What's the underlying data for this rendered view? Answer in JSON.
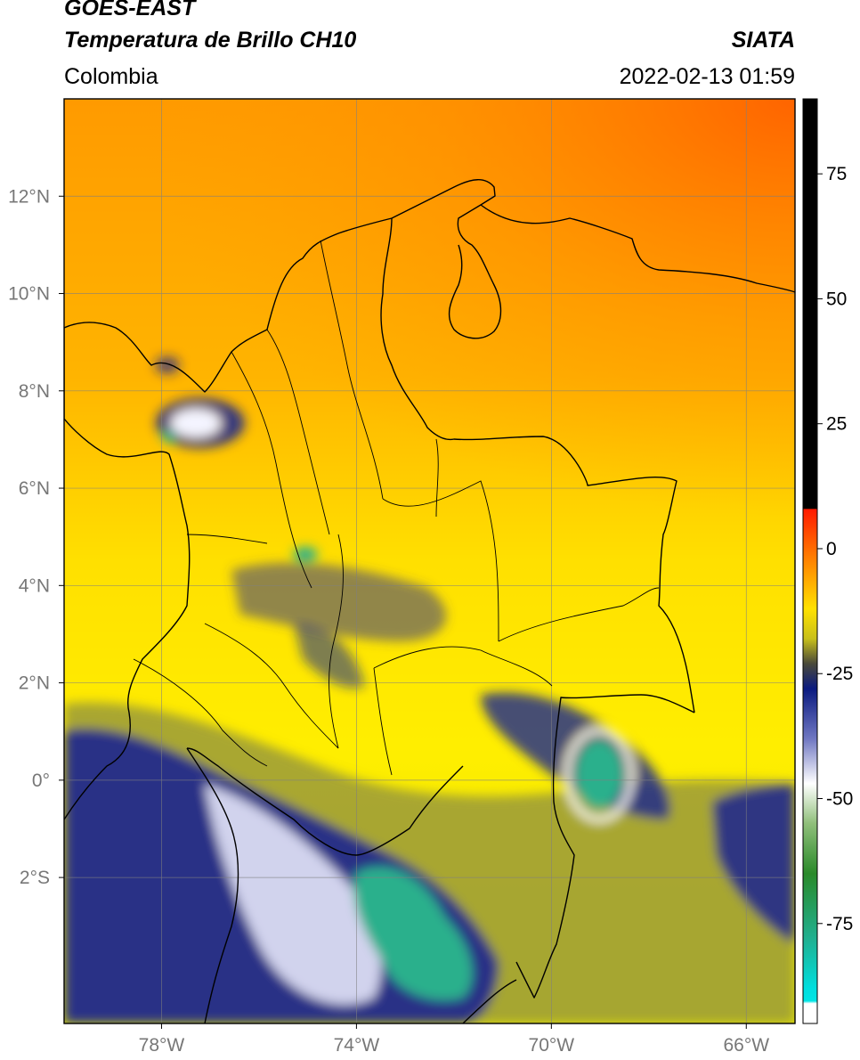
{
  "header": {
    "title_line1": "GOES-EAST",
    "title_line2": "Temperatura de Brillo CH10",
    "region": "Colombia",
    "source": "SIATA",
    "datetime": "2022-02-13 01:59"
  },
  "axes": {
    "lon_ticks": [
      {
        "value": -78,
        "label": "78°W"
      },
      {
        "value": -74,
        "label": "74°W"
      },
      {
        "value": -70,
        "label": "70°W"
      },
      {
        "value": -66,
        "label": "66°W"
      }
    ],
    "lat_ticks": [
      {
        "value": 12,
        "label": "12°N"
      },
      {
        "value": 10,
        "label": "10°N"
      },
      {
        "value": 8,
        "label": "8°N"
      },
      {
        "value": 6,
        "label": "6°N"
      },
      {
        "value": 4,
        "label": "4°N"
      },
      {
        "value": 2,
        "label": "2°N"
      },
      {
        "value": 0,
        "label": "0°"
      },
      {
        "value": -2,
        "label": "2°S"
      }
    ],
    "lon_range": [
      -80,
      -65
    ],
    "lat_range": [
      -5.0,
      14.0
    ],
    "gridlines": true
  },
  "colorbar": {
    "range": [
      -95,
      90
    ],
    "ticks": [
      {
        "value": 75,
        "label": "75"
      },
      {
        "value": 50,
        "label": "50"
      },
      {
        "value": 25,
        "label": "25"
      },
      {
        "value": 0,
        "label": "0"
      },
      {
        "value": -25,
        "label": "-25"
      },
      {
        "value": -50,
        "label": "-50"
      },
      {
        "value": -75,
        "label": "-75"
      }
    ],
    "stops": [
      {
        "value": 90,
        "color": "#000000"
      },
      {
        "value": 8,
        "color": "#000000"
      },
      {
        "value": 7.9,
        "color": "#ff1a00"
      },
      {
        "value": -3,
        "color": "#ff8a00"
      },
      {
        "value": -12,
        "color": "#ffe100"
      },
      {
        "value": -18,
        "color": "#c8c01a"
      },
      {
        "value": -23,
        "color": "#4a4a3a"
      },
      {
        "value": -28,
        "color": "#0a1a80"
      },
      {
        "value": -38,
        "color": "#6f77c2"
      },
      {
        "value": -47,
        "color": "#ffffff"
      },
      {
        "value": -55,
        "color": "#8fbf7a"
      },
      {
        "value": -65,
        "color": "#2a8a2a"
      },
      {
        "value": -78,
        "color": "#20b090"
      },
      {
        "value": -88,
        "color": "#00dede"
      },
      {
        "value": -90.5,
        "color": "#00e5e5"
      },
      {
        "value": -91,
        "color": "#ffffff"
      },
      {
        "value": -95,
        "color": "#ffffff"
      }
    ]
  },
  "colors": {
    "north_sea": "#ff6e00",
    "mid": "#ffb000",
    "central": "#ffe600",
    "south": "#e4e400",
    "cold_core": "#132080",
    "very_cold": "#2ab08c"
  }
}
